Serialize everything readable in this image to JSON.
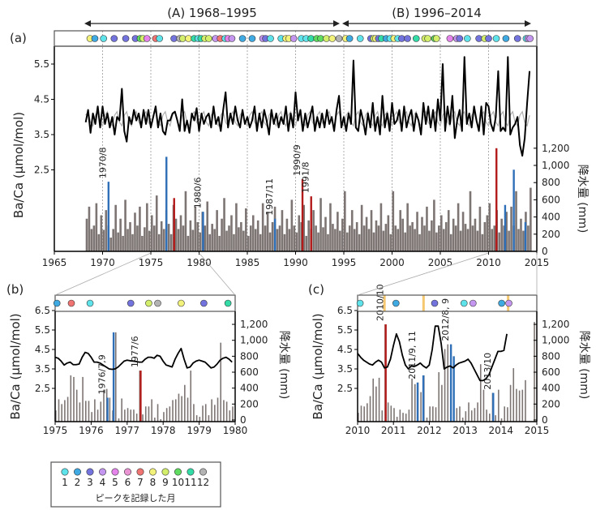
{
  "colors": {
    "line": "#000000",
    "fit": "#b0b0b0",
    "precip": "#7d7573",
    "highlight_blue": "#2f6fb8",
    "highlight_red": "#b31b1b",
    "band": "#f5c870"
  },
  "month_colors": {
    "1": "#5fe3ea",
    "2": "#3fa9e2",
    "3": "#7373dd",
    "4": "#c596ef",
    "5": "#e483ea",
    "6": "#ea93d2",
    "7": "#f07472",
    "8": "#f2f27a",
    "9": "#d2ee6a",
    "10": "#5fdc5f",
    "11": "#33dba6",
    "12": "#b3b3b3"
  },
  "periods": [
    {
      "label": "(A) 1968–1995",
      "from": 1968,
      "to": 1995
    },
    {
      "label": "(B) 1996–2014",
      "from": 1996,
      "to": 2014
    }
  ],
  "legend": {
    "months": [
      "1",
      "2",
      "3",
      "4",
      "5",
      "6",
      "7",
      "8",
      "9",
      "10",
      "11",
      "12"
    ],
    "caption": "ピークを記録した月"
  },
  "chart_data": [
    {
      "panel_label": "(a)",
      "type": "line+bar",
      "xlim": [
        1965,
        2015
      ],
      "xticks": [
        "1965",
        "1970",
        "1975",
        "1980",
        "1985",
        "1990",
        "1995",
        "2000",
        "2005",
        "2010",
        "2015"
      ],
      "ylabel": "Ba/Ca (μmol/mol)",
      "yticks": [
        "2.5",
        "3.5",
        "4.5",
        "5.5"
      ],
      "y2label": "降水量 (mm)",
      "y2ticks": [
        "0",
        "200",
        "400",
        "600",
        "800",
        "1,000",
        "1,200"
      ],
      "grid": "dashed vertical every 5 years",
      "ba_ca": {
        "start": 1968.25,
        "step": 0.25,
        "values": [
          3.85,
          4.2,
          3.55,
          4.1,
          3.8,
          4.3,
          3.7,
          4.3,
          3.8,
          4.1,
          3.7,
          4.0,
          3.5,
          4.0,
          3.9,
          4.8,
          3.6,
          3.3,
          4.0,
          3.8,
          4.2,
          3.9,
          4.1,
          3.7,
          4.2,
          3.8,
          4.2,
          3.7,
          4.0,
          4.3,
          3.7,
          4.1,
          3.6,
          3.5,
          3.9,
          3.9,
          4.1,
          4.15,
          3.9,
          3.6,
          4.5,
          3.6,
          3.9,
          3.55,
          4.1,
          3.9,
          4.25,
          3.6,
          4.1,
          3.8,
          4.0,
          4.1,
          3.7,
          4.3,
          3.8,
          4.0,
          3.6,
          4.2,
          4.7,
          3.7,
          4.1,
          3.8,
          4.3,
          3.9,
          3.7,
          4.2,
          3.8,
          4.0,
          3.7,
          3.9,
          4.3,
          3.6,
          4.1,
          3.7,
          4.2,
          3.9,
          3.5,
          4.2,
          3.8,
          4.1,
          3.7,
          4.0,
          3.8,
          4.3,
          3.6,
          4.1,
          3.7,
          4.7,
          3.9,
          4.2,
          3.6,
          4.1,
          3.7,
          4.0,
          4.3,
          3.6,
          4.0,
          3.7,
          4.1,
          3.7,
          4.2,
          3.8,
          4.0,
          3.6,
          4.2,
          4.6,
          3.7,
          4.0,
          3.6,
          4.1,
          3.8,
          5.6,
          3.7,
          3.6,
          4.2,
          3.9,
          3.5,
          4.1,
          3.7,
          4.4,
          3.6,
          4.0,
          3.5,
          4.6,
          3.7,
          4.1,
          3.6,
          4.4,
          3.8,
          3.9,
          4.2,
          3.6,
          4.3,
          3.7,
          4.0,
          4.2,
          3.6,
          4.1,
          3.9,
          3.5,
          4.4,
          3.8,
          4.3,
          3.7,
          4.2,
          3.6,
          4.5,
          3.9,
          5.5,
          3.6,
          4.3,
          3.8,
          4.6,
          3.4,
          3.9,
          4.2,
          3.6,
          5.7,
          3.8,
          4.1,
          3.7,
          4.3,
          3.9,
          3.6,
          4.3,
          3.5,
          4.4,
          4.3,
          3.8,
          3.6,
          4.0,
          5.3,
          3.6,
          3.7,
          3.6,
          5.7,
          3.5,
          3.7,
          3.8,
          4.0,
          3.2,
          2.9,
          3.4,
          4.4,
          5.3
        ]
      },
      "seasonal_fit_quarterly_cycle": [
        3.75,
        4.05,
        4.15,
        3.85
      ],
      "precipitation": {
        "start": 1968.25,
        "step": 0.25,
        "values": [
          380,
          520,
          260,
          300,
          560,
          200,
          420,
          250,
          480,
          300,
          160,
          260,
          540,
          220,
          380,
          180,
          600,
          260,
          340,
          200,
          450,
          300,
          520,
          180,
          280,
          560,
          240,
          420,
          300,
          650,
          200,
          350,
          260,
          480,
          320,
          200,
          540,
          380,
          260,
          420,
          300,
          700,
          180,
          360,
          250,
          520,
          340,
          220,
          460,
          300,
          580,
          200,
          320,
          260,
          480,
          180,
          380,
          620,
          240,
          300,
          420,
          200,
          560,
          280,
          340,
          240,
          500,
          180,
          300,
          420,
          260,
          360,
          200,
          560,
          300,
          460,
          220,
          340,
          520,
          260,
          300,
          480,
          200,
          380,
          260,
          600,
          300,
          220,
          420,
          340,
          540,
          180,
          360,
          260,
          480,
          300,
          220,
          620,
          280,
          400,
          200,
          560,
          320,
          260,
          460,
          240,
          380,
          700,
          220,
          300,
          480,
          260,
          340,
          200,
          540,
          300,
          400,
          260,
          480,
          220,
          360,
          300,
          560,
          240,
          320,
          420,
          200,
          700,
          300,
          260,
          480,
          380,
          220,
          560,
          300,
          340,
          260,
          460,
          200,
          400,
          300,
          520,
          240,
          360,
          600,
          220,
          300,
          420,
          260,
          340,
          480,
          200,
          380,
          300,
          560,
          240,
          460,
          320,
          260,
          700,
          300,
          380,
          240,
          520,
          200,
          340,
          420,
          560,
          260,
          300,
          480,
          220,
          380,
          300,
          460,
          240,
          520,
          300,
          700,
          260,
          380,
          240,
          460,
          300,
          740
        ]
      },
      "highlighted_peaks": [
        {
          "label": "1970/8",
          "date": 1970.6,
          "precip": 810,
          "color": "blue"
        },
        {
          "label": "",
          "date": 1976.6,
          "precip": 1100,
          "color": "blue"
        },
        {
          "label": "",
          "date": 1977.4,
          "precip": 620,
          "color": "red"
        },
        {
          "label": "1980/6",
          "date": 1980.4,
          "precip": 460,
          "color": "blue"
        },
        {
          "label": "1987/11",
          "date": 1987.85,
          "precip": 380,
          "color": "blue"
        },
        {
          "label": "1990/9",
          "date": 1990.7,
          "precip": 840,
          "color": "red"
        },
        {
          "label": "1991/8",
          "date": 1991.6,
          "precip": 640,
          "color": "red"
        },
        {
          "label": "",
          "date": 2010.8,
          "precip": 1200,
          "color": "red"
        },
        {
          "label": "",
          "date": 2011.7,
          "precip": 540,
          "color": "blue"
        },
        {
          "label": "",
          "date": 2012.6,
          "precip": 950,
          "color": "blue"
        },
        {
          "label": "",
          "date": 2013.8,
          "precip": 340,
          "color": "blue"
        }
      ],
      "peak_months": [
        [
          1968.7,
          8
        ],
        [
          1969.2,
          2
        ],
        [
          1970.1,
          1
        ],
        [
          1971.2,
          3
        ],
        [
          1972.4,
          3
        ],
        [
          1973.4,
          3
        ],
        [
          1973.9,
          10
        ],
        [
          1974.2,
          9
        ],
        [
          1974.6,
          5
        ],
        [
          1975.5,
          7
        ],
        [
          1975.9,
          1
        ],
        [
          1977.4,
          3
        ],
        [
          1978.0,
          12
        ],
        [
          1978.3,
          9
        ],
        [
          1978.9,
          8
        ],
        [
          1979.5,
          11
        ],
        [
          1979.9,
          1
        ],
        [
          1980.2,
          11
        ],
        [
          1980.6,
          9
        ],
        [
          1981.0,
          9
        ],
        [
          1981.7,
          4
        ],
        [
          1982.2,
          7
        ],
        [
          1982.7,
          1
        ],
        [
          1983.0,
          5
        ],
        [
          1983.4,
          4
        ],
        [
          1984.5,
          2
        ],
        [
          1985.5,
          2
        ],
        [
          1986.6,
          4
        ],
        [
          1986.9,
          3
        ],
        [
          1987.4,
          1
        ],
        [
          1988.5,
          1
        ],
        [
          1989.0,
          8
        ],
        [
          1989.3,
          8
        ],
        [
          1989.8,
          4
        ],
        [
          1990.6,
          1
        ],
        [
          1991.1,
          1
        ],
        [
          1991.6,
          11
        ],
        [
          1992.2,
          10
        ],
        [
          1992.6,
          10
        ],
        [
          1993.2,
          9
        ],
        [
          1993.8,
          8
        ],
        [
          1994.5,
          12
        ],
        [
          1995.2,
          8
        ],
        [
          1995.6,
          2
        ],
        [
          1996.7,
          1
        ],
        [
          1997.8,
          3
        ],
        [
          1998.1,
          9
        ],
        [
          1998.3,
          8
        ],
        [
          1998.6,
          3
        ],
        [
          1998.9,
          11
        ],
        [
          1999.4,
          2
        ],
        [
          1999.8,
          1
        ],
        [
          2000.2,
          8
        ],
        [
          2000.6,
          1
        ],
        [
          2001.0,
          3
        ],
        [
          2001.6,
          3
        ],
        [
          2002.5,
          11
        ],
        [
          2003.4,
          9
        ],
        [
          2003.7,
          9
        ],
        [
          2004.4,
          10
        ],
        [
          2004.6,
          9
        ],
        [
          2006.0,
          5
        ],
        [
          2006.7,
          4
        ],
        [
          2007.0,
          3
        ],
        [
          2007.8,
          1
        ],
        [
          2009.0,
          3
        ],
        [
          2009.6,
          9
        ],
        [
          2010.0,
          3
        ],
        [
          2010.8,
          1
        ],
        [
          2011.8,
          2
        ],
        [
          2013.0,
          3
        ],
        [
          2013.9,
          1
        ],
        [
          2014.1,
          4
        ],
        [
          2014.3,
          4
        ]
      ]
    },
    {
      "panel_label": "(b)",
      "type": "line+bar",
      "xlim": [
        1975,
        1980
      ],
      "xticks": [
        "1975",
        "1976",
        "1977",
        "1978",
        "1979",
        "1980"
      ],
      "ylabel": "Ba/Ca (μmol/mol)",
      "yticks": [
        "2.5",
        "3.5",
        "4.5",
        "5.5",
        "6.5"
      ],
      "y2label": "降水量 (mm)",
      "y2ticks": [
        "0",
        "200",
        "400",
        "600",
        "800",
        "1,000",
        "1,200"
      ],
      "ba_ca": {
        "start": 1975.0,
        "step": 0.0833,
        "values": [
          4.1,
          4.05,
          3.9,
          3.7,
          3.8,
          3.85,
          3.72,
          3.72,
          3.75,
          4.1,
          4.35,
          4.3,
          4.1,
          3.85,
          3.85,
          3.8,
          3.7,
          3.6,
          3.5,
          3.48,
          3.5,
          3.6,
          3.75,
          3.9,
          3.95,
          3.92,
          3.9,
          3.88,
          3.85,
          3.85,
          4.0,
          4.1,
          4.1,
          4.05,
          4.2,
          4.15,
          3.9,
          3.7,
          3.65,
          3.6,
          4.0,
          4.3,
          4.55,
          4.0,
          3.55,
          3.6,
          3.8,
          3.9,
          3.95,
          3.9,
          3.85,
          3.7,
          3.55,
          3.6,
          3.75,
          3.95,
          4.05,
          4.1,
          4.0,
          3.85
        ]
      },
      "precipitation": {
        "start": 1975.0,
        "step": 0.0833,
        "values": [
          120,
          260,
          200,
          250,
          290,
          560,
          540,
          380,
          220,
          540,
          240,
          240,
          100,
          260,
          130,
          230,
          380,
          390,
          280,
          120,
          1100,
          20,
          270,
          130,
          150,
          130,
          130,
          80,
          620,
          70,
          170,
          170,
          260,
          30,
          200,
          10,
          100,
          150,
          170,
          250,
          260,
          330,
          300,
          440,
          280,
          620,
          200,
          60,
          40,
          180,
          200,
          60,
          260,
          190,
          280,
          970,
          250,
          230,
          120,
          170
        ]
      },
      "highlighted_peaks": [
        {
          "label": "1976/7,9",
          "date": 1976.45,
          "precip": 280,
          "color": "blue"
        },
        {
          "label": "",
          "date": 1976.62,
          "precip": 1100,
          "color": "blue"
        },
        {
          "label": "1977/6",
          "date": 1977.37,
          "precip": 620,
          "color": "red"
        }
      ],
      "peak_months": [
        [
          1975.05,
          2
        ],
        [
          1975.45,
          7
        ],
        [
          1975.97,
          1
        ],
        [
          1977.1,
          3
        ],
        [
          1977.6,
          9
        ],
        [
          1977.85,
          12
        ],
        [
          1978.5,
          8
        ],
        [
          1979.13,
          3
        ],
        [
          1979.8,
          11
        ]
      ]
    },
    {
      "panel_label": "(c)",
      "type": "line+bar",
      "xlim": [
        2010,
        2015
      ],
      "xticks": [
        "2010",
        "2011",
        "2012",
        "2013",
        "2014",
        "2015"
      ],
      "ylabel": "Ba/Ca (μmol/mol)",
      "yticks": [
        "2.5",
        "3.5",
        "4.5",
        "5.5",
        "6.5"
      ],
      "y2label": "降水量 (mm)",
      "y2ticks": [
        "0",
        "200",
        "400",
        "600",
        "800",
        "1,000",
        "1,200"
      ],
      "ba_ca": {
        "start": 2010.0,
        "step": 0.0833,
        "values": [
          4.3,
          4.1,
          3.95,
          3.85,
          3.75,
          3.7,
          3.85,
          3.95,
          3.85,
          3.55,
          3.6,
          4.0,
          4.7,
          5.3,
          4.9,
          4.2,
          3.7,
          3.5,
          3.65,
          3.62,
          3.7,
          3.8,
          3.65,
          3.55,
          3.7,
          4.5,
          5.7,
          5.7,
          4.8,
          3.5,
          3.6,
          3.65,
          3.55,
          3.7,
          3.8,
          3.85,
          3.9,
          4.0,
          3.8,
          3.5,
          3.2,
          2.9,
          2.9,
          3.0,
          3.2,
          3.6,
          4.0,
          4.4,
          4.4,
          4.45,
          5.3
        ]
      },
      "precipitation": {
        "start": 2010.0,
        "step": 0.0833,
        "values": [
          90,
          180,
          170,
          210,
          300,
          520,
          420,
          530,
          120,
          1200,
          220,
          180,
          150,
          40,
          130,
          90,
          80,
          130,
          520,
          450,
          470,
          350,
          560,
          30,
          170,
          170,
          160,
          600,
          440,
          890,
          950,
          800,
          130,
          150,
          170,
          30,
          110,
          220,
          120,
          150,
          220,
          700,
          380,
          130,
          80,
          340,
          60,
          380,
          20,
          170,
          160,
          440,
          650,
          390,
          370,
          380,
          500,
          0,
          0,
          1230
        ]
      },
      "highlighted_peaks": [
        {
          "label": "2010/10",
          "date": 2010.78,
          "precip": 1200,
          "color": "red"
        },
        {
          "label": "2011/9, 11",
          "date": 2011.67,
          "precip": 470,
          "color": "blue"
        },
        {
          "label": "",
          "date": 2011.83,
          "precip": 560,
          "color": "blue"
        },
        {
          "label": "2012/8, 9",
          "date": 2012.6,
          "precip": 950,
          "color": "blue"
        },
        {
          "label": "",
          "date": 2012.68,
          "precip": 800,
          "color": "blue"
        },
        {
          "label": "2013/10",
          "date": 2013.78,
          "precip": 340,
          "color": "blue"
        }
      ],
      "bands": [
        2010.75,
        2011.84,
        2014.2
      ],
      "peak_months": [
        [
          2010.07,
          1
        ],
        [
          2011.07,
          2
        ],
        [
          2012.15,
          3
        ],
        [
          2012.97,
          1
        ],
        [
          2013.22,
          4
        ],
        [
          2014.02,
          2
        ],
        [
          2014.22,
          4
        ]
      ]
    }
  ]
}
